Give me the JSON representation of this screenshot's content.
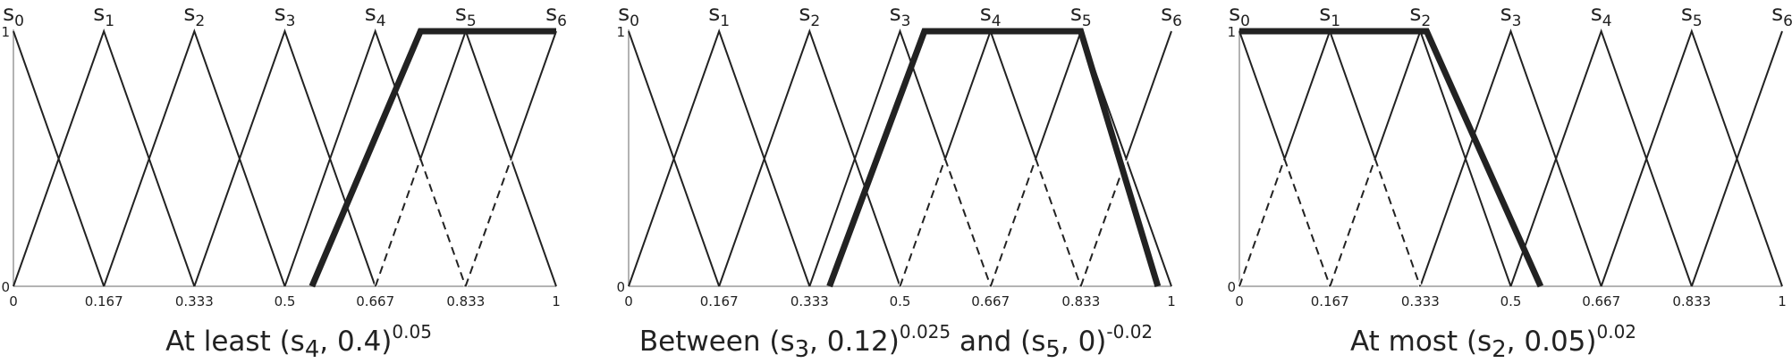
{
  "colors": {
    "line": "#222222",
    "axis": "#9a9a9a",
    "background": "#ffffff"
  },
  "label_sub": "s",
  "y_ticks": [
    "1",
    "0"
  ],
  "x_ticks": [
    "0",
    "0.167",
    "0.333",
    "0.5",
    "0.667",
    "0.833",
    "1"
  ],
  "panels": [
    {
      "caption": {
        "pre": "At least (s",
        "sub1": "4",
        "mid1": ", 0.4)",
        "sup1": "0.05",
        "mid2": "",
        "sub2": "",
        "mid3": "",
        "sup2": ""
      },
      "bold_path": [
        [
          0.55,
          0
        ],
        [
          0.75,
          1
        ],
        [
          1,
          1
        ]
      ],
      "dashed_segments": [
        [
          [
            0.667,
            0
          ],
          [
            0.75,
            0.5
          ]
        ],
        [
          [
            0.75,
            0.5
          ],
          [
            0.833,
            0
          ]
        ],
        [
          [
            0.833,
            0
          ],
          [
            0.917,
            0.5
          ]
        ]
      ]
    },
    {
      "caption": {
        "pre": "Between (s",
        "sub1": "3",
        "mid1": ", 0.12)",
        "sup1": "0.025",
        "mid2": " and (s",
        "sub2": "5",
        "mid3": ", 0)",
        "sup2": "-0.02"
      },
      "bold_path": [
        [
          0.37,
          0
        ],
        [
          0.545,
          1
        ],
        [
          0.833,
          1
        ],
        [
          0.975,
          0
        ]
      ],
      "dashed_segments": [
        [
          [
            0.5,
            0
          ],
          [
            0.583,
            0.5
          ]
        ],
        [
          [
            0.583,
            0.5
          ],
          [
            0.667,
            0
          ]
        ],
        [
          [
            0.667,
            0
          ],
          [
            0.75,
            0.5
          ]
        ],
        [
          [
            0.75,
            0.5
          ],
          [
            0.833,
            0
          ]
        ],
        [
          [
            0.833,
            0
          ],
          [
            0.917,
            0.5
          ]
        ]
      ]
    },
    {
      "caption": {
        "pre": "At most (s",
        "sub1": "2",
        "mid1": ", 0.05)",
        "sup1": "0.02",
        "mid2": "",
        "sub2": "",
        "mid3": "",
        "sup2": ""
      },
      "bold_path": [
        [
          0,
          1
        ],
        [
          0.345,
          1
        ],
        [
          0.555,
          0
        ]
      ],
      "dashed_segments": [
        [
          [
            0,
            0
          ],
          [
            0.083,
            0.5
          ]
        ],
        [
          [
            0.083,
            0.5
          ],
          [
            0.167,
            0
          ]
        ],
        [
          [
            0.167,
            0
          ],
          [
            0.25,
            0.5
          ]
        ],
        [
          [
            0.25,
            0.5
          ],
          [
            0.333,
            0
          ]
        ]
      ]
    }
  ]
}
